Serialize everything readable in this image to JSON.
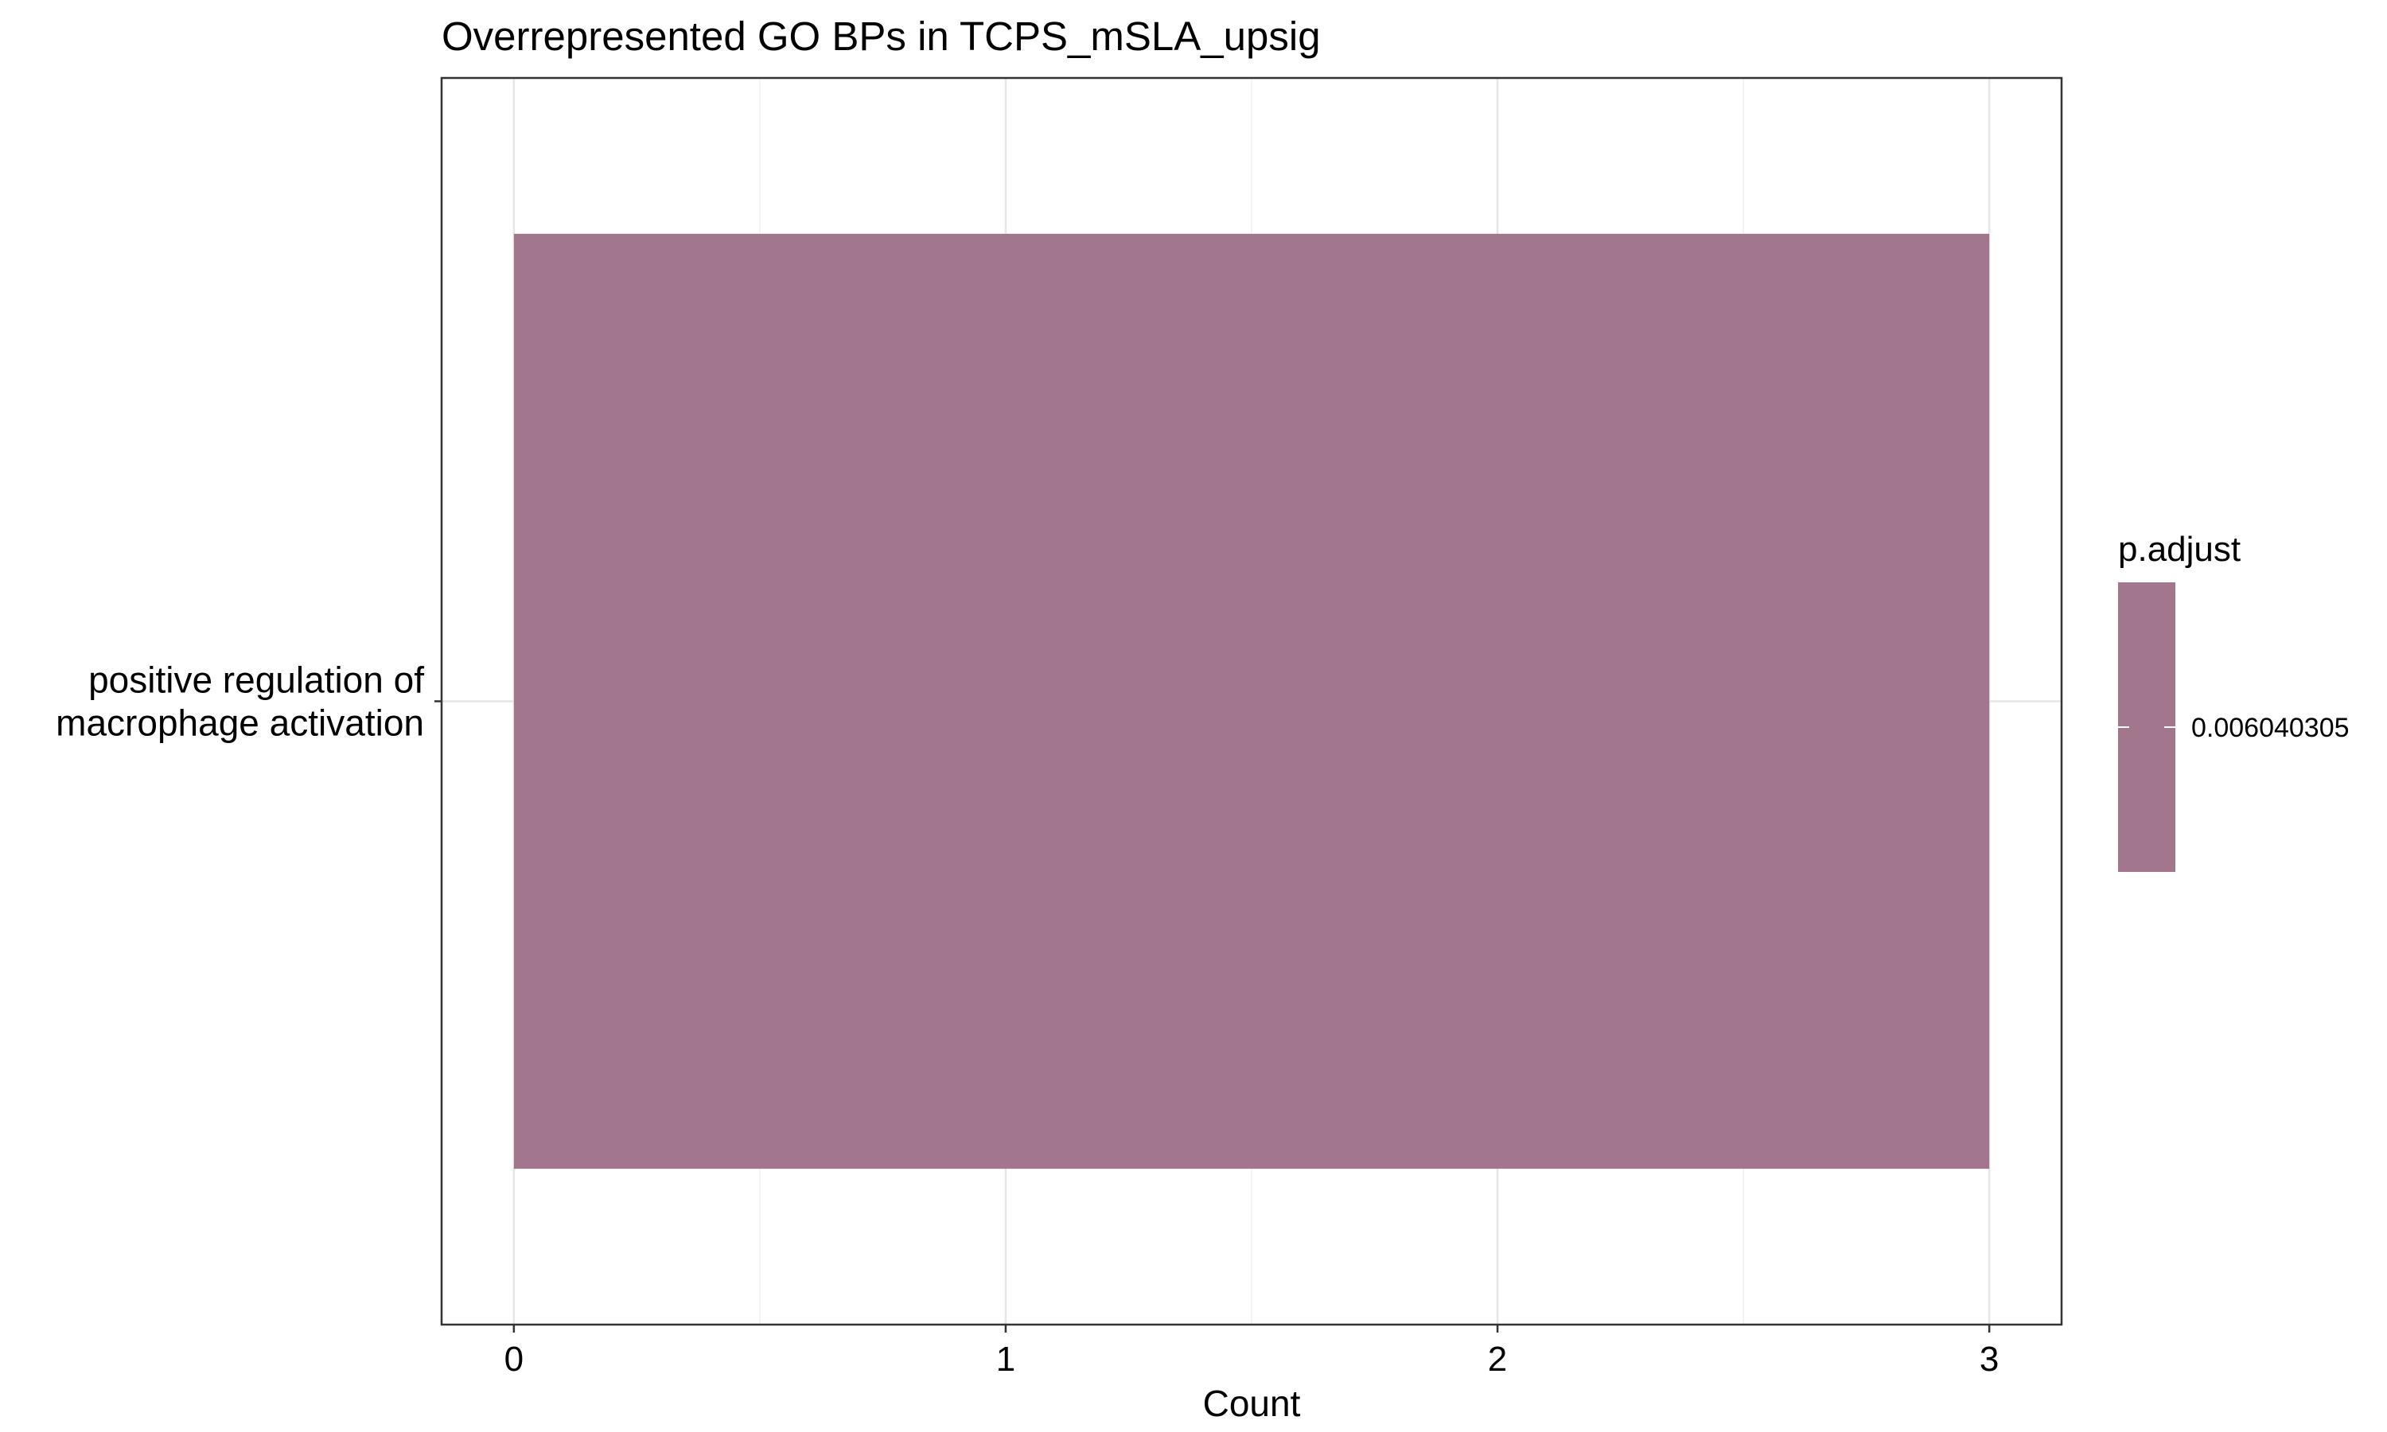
{
  "chart_data": {
    "type": "bar",
    "orientation": "horizontal",
    "title": "Overrepresented GO BPs in TCPS_mSLA_upsig",
    "xlabel": "Count",
    "ylabel": "",
    "xlim": [
      -0.147,
      3.147
    ],
    "x_ticks": [
      0,
      1,
      2,
      3
    ],
    "x_tick_labels": [
      "0",
      "1",
      "2",
      "3"
    ],
    "grid": true,
    "categories": [
      "positive regulation of macrophage activation"
    ],
    "category_label_lines": [
      [
        "positive regulation of",
        "macrophage activation"
      ]
    ],
    "values": [
      3
    ],
    "p_adjust": [
      0.006040305
    ],
    "bar_color": "#a2768c",
    "legend": {
      "title": "p.adjust",
      "placement": "right",
      "labels": [
        "0.006040305"
      ]
    }
  }
}
